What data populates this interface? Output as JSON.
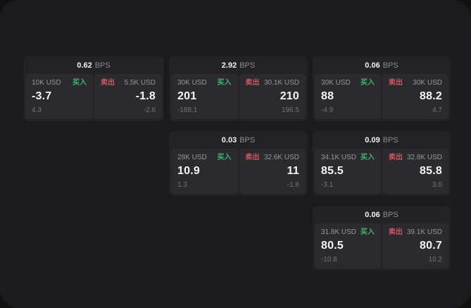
{
  "page": {
    "background_outer": "#111112",
    "background": "#1b1b1d"
  },
  "colors": {
    "card_bg": "#232326",
    "panel_bg": "#2b2b2e",
    "buy_green": "#43b274",
    "sell_red": "#cf5766",
    "price_text": "#f4f4f5",
    "amount_text": "#97979b",
    "sub_text": "#737377",
    "bps_unit_text": "#8b8b90"
  },
  "labels": {
    "buy": "买入",
    "sell": "卖出",
    "bps_unit": "BPS"
  },
  "cards": [
    {
      "bps": "0.62",
      "col": 1,
      "row": 1,
      "buy": {
        "amount": "10K USD",
        "price": "-3.7",
        "sub": "4.3"
      },
      "sell": {
        "amount": "5.5K USD",
        "price": "-1.8",
        "sub": "-2.6"
      }
    },
    {
      "bps": "2.92",
      "col": 2,
      "row": 1,
      "buy": {
        "amount": "30K USD",
        "price": "201",
        "sub": "-188.1"
      },
      "sell": {
        "amount": "30.1K USD",
        "price": "210",
        "sub": "196.5"
      }
    },
    {
      "bps": "0.06",
      "col": 3,
      "row": 1,
      "buy": {
        "amount": "30K USD",
        "price": "88",
        "sub": "-4.9"
      },
      "sell": {
        "amount": "30K USD",
        "price": "88.2",
        "sub": "4.7"
      }
    },
    {
      "bps": "0.03",
      "col": 2,
      "row": 2,
      "buy": {
        "amount": "28K USD",
        "price": "10.9",
        "sub": "1.3"
      },
      "sell": {
        "amount": "32.6K USD",
        "price": "11",
        "sub": "-1.8"
      }
    },
    {
      "bps": "0.09",
      "col": 3,
      "row": 2,
      "buy": {
        "amount": "34.1K USD",
        "price": "85.5",
        "sub": "-3.1"
      },
      "sell": {
        "amount": "32.8K USD",
        "price": "85.8",
        "sub": "3.0"
      }
    },
    {
      "bps": "0.06",
      "col": 3,
      "row": 3,
      "buy": {
        "amount": "31.8K USD",
        "price": "80.5",
        "sub": "-10.8"
      },
      "sell": {
        "amount": "39.1K USD",
        "price": "80.7",
        "sub": "10.2"
      }
    }
  ]
}
